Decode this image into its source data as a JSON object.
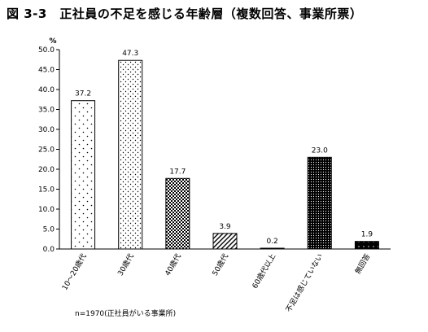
{
  "title": "図 3-3　正社員の不足を感じる年齢層（複数回答、事業所票）",
  "note": "n=1970(正社員がいる事業所)",
  "chart_data": {
    "type": "bar",
    "ylabel": "%",
    "ylim": [
      0,
      50
    ],
    "ytick_step": 5,
    "ytick_labels": [
      "0.0",
      "5.0",
      "10.0",
      "15.0",
      "20.0",
      "25.0",
      "30.0",
      "35.0",
      "40.0",
      "45.0",
      "50.0"
    ],
    "categories": [
      "10～20歳代",
      "30歳代",
      "40歳代",
      "50歳代",
      "60歳代以上",
      "不足は感じていない",
      "無回答"
    ],
    "values": [
      37.2,
      47.3,
      17.7,
      3.9,
      0.2,
      23.0,
      1.9
    ],
    "value_labels": [
      "37.2",
      "47.3",
      "17.7",
      "3.9",
      "0.2",
      "23.0",
      "1.9"
    ],
    "grid": false,
    "legend": "none"
  }
}
